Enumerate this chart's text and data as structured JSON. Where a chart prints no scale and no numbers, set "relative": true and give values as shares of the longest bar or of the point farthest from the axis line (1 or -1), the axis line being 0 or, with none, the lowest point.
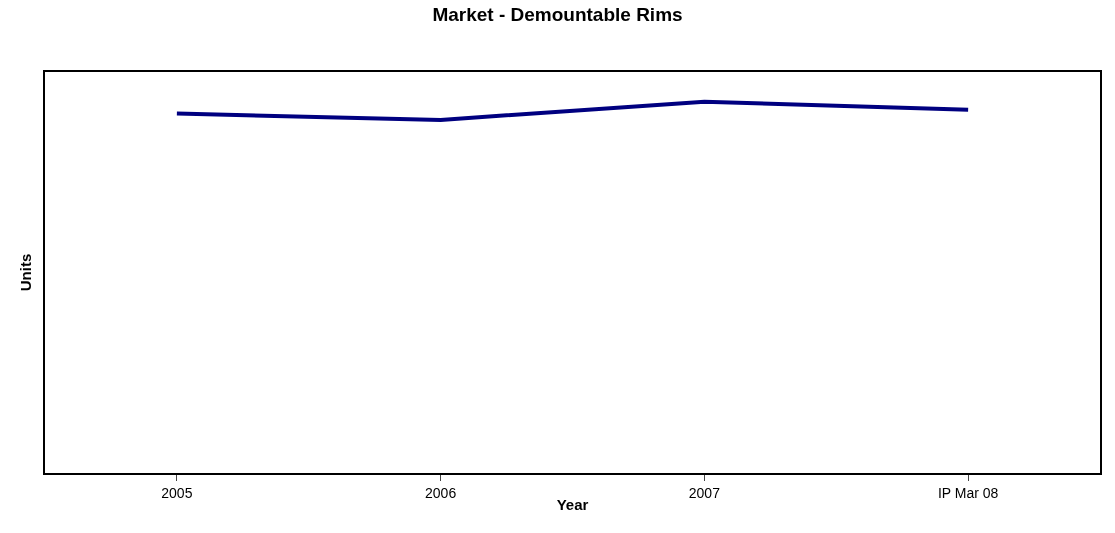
{
  "chart_data": {
    "type": "line",
    "title": "Market - Demountable Rims",
    "xlabel": "Year",
    "ylabel": "Units",
    "categories": [
      "2005",
      "2006",
      "2007",
      "IP Mar 08"
    ],
    "relative": true,
    "series": [
      {
        "color": "#000080",
        "values": [
          0.968,
          0.951,
          1,
          0.978
        ]
      }
    ],
    "marker": "none",
    "line_style": "solid"
  }
}
